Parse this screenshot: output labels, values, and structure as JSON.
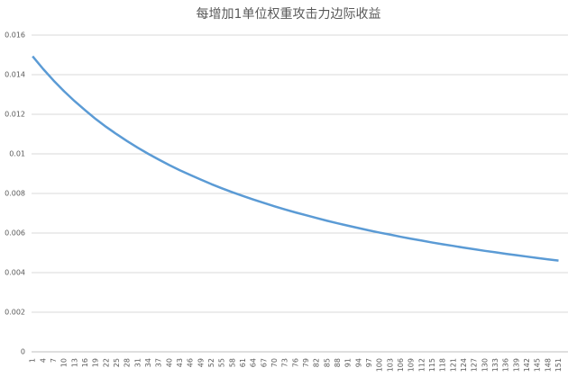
{
  "chart_data": {
    "type": "line",
    "title": "每增加1单位权重攻击力边际收益",
    "categories": [
      1,
      4,
      7,
      10,
      13,
      16,
      19,
      22,
      25,
      28,
      31,
      34,
      37,
      40,
      43,
      46,
      49,
      52,
      55,
      58,
      61,
      64,
      67,
      70,
      73,
      76,
      79,
      82,
      85,
      88,
      91,
      94,
      97,
      100,
      103,
      106,
      109,
      112,
      115,
      118,
      121,
      124,
      127,
      130,
      133,
      136,
      139,
      142,
      145,
      148,
      151
    ],
    "series": [
      {
        "color": "#5b9bd5",
        "values": [
          0.01493,
          0.01429,
          0.0137,
          0.01316,
          0.01266,
          0.0122,
          0.01176,
          0.01136,
          0.01099,
          0.01064,
          0.01031,
          0.01,
          0.00971,
          0.00943,
          0.00917,
          0.00893,
          0.0087,
          0.00847,
          0.00826,
          0.00806,
          0.00787,
          0.00769,
          0.00752,
          0.00735,
          0.00719,
          0.00704,
          0.0069,
          0.00676,
          0.00662,
          0.00649,
          0.00637,
          0.00625,
          0.00613,
          0.00602,
          0.00592,
          0.00581,
          0.00571,
          0.00562,
          0.00552,
          0.00543,
          0.00535,
          0.00526,
          0.00518,
          0.0051,
          0.00503,
          0.00495,
          0.00488,
          0.00481,
          0.00474,
          0.00467,
          0.00461
        ]
      }
    ],
    "ylim": [
      0,
      0.016
    ],
    "yticks": [
      0,
      0.002,
      0.004,
      0.006,
      0.008,
      0.01,
      0.012,
      0.014,
      0.016
    ],
    "grid": true
  }
}
